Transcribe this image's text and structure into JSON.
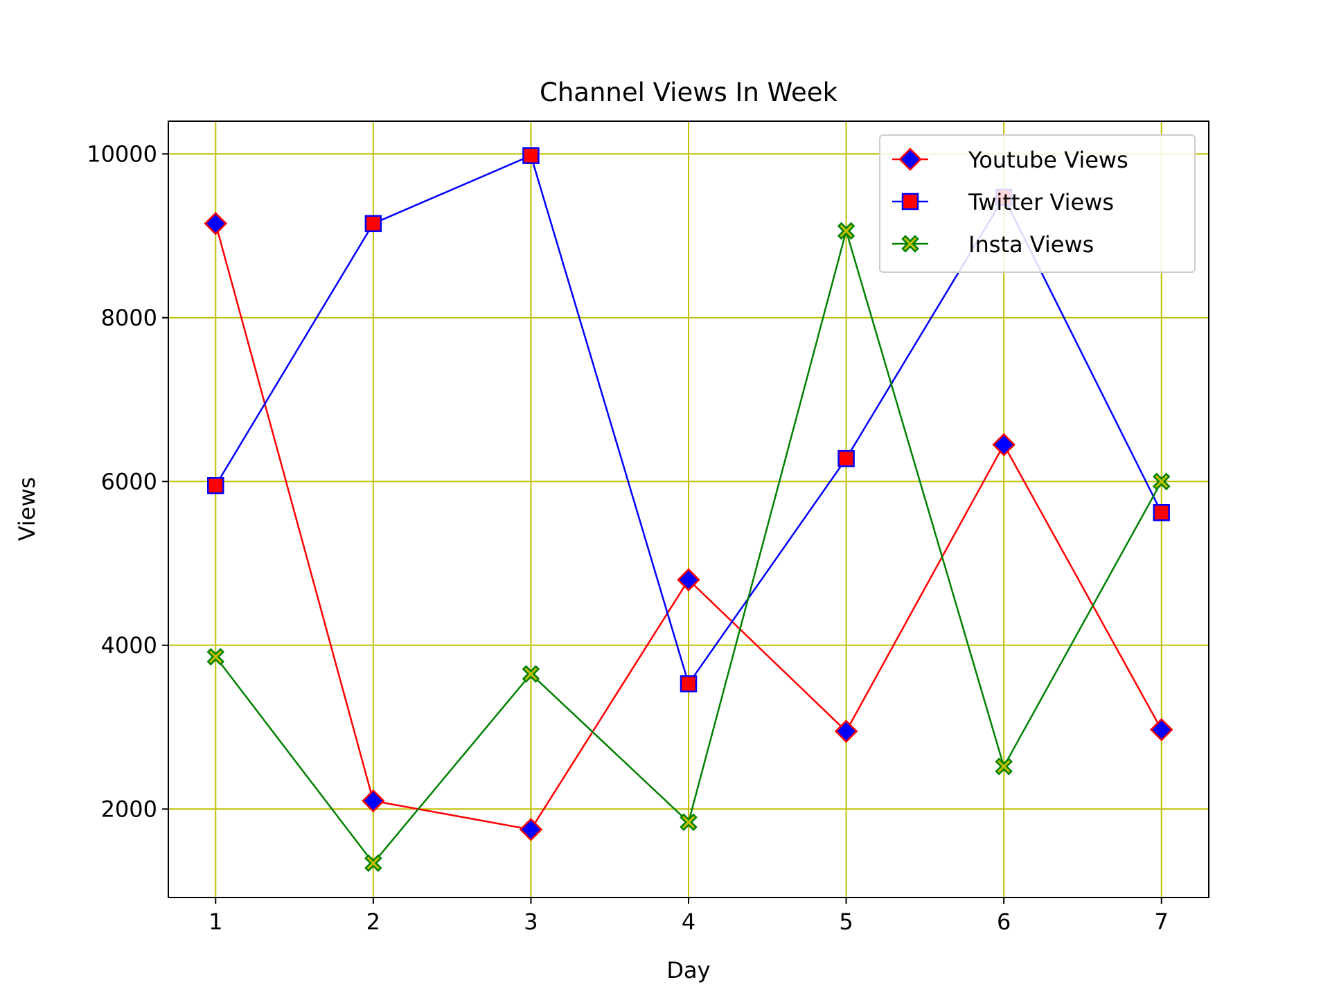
{
  "chart_data": {
    "type": "line",
    "title": "Channel Views In Week",
    "xlabel": "Day",
    "ylabel": "Views",
    "x": [
      1,
      2,
      3,
      4,
      5,
      6,
      7
    ],
    "xticks": [
      "1",
      "2",
      "3",
      "4",
      "5",
      "6",
      "7"
    ],
    "yticks": [
      "2000",
      "4000",
      "6000",
      "8000",
      "10000"
    ],
    "xlim": [
      0.7,
      7.3
    ],
    "ylim": [
      920,
      10400
    ],
    "grid": true,
    "grid_color": "#bfbf00",
    "legend_position": "top-right",
    "series": [
      {
        "name": "Youtube Views",
        "values": [
          9150,
          2100,
          1750,
          4800,
          2950,
          6450,
          2970
        ],
        "line_color": "#ff0000",
        "marker": "diamond",
        "marker_face": "#0000ff",
        "marker_edge": "#ff0000"
      },
      {
        "name": "Twitter Views",
        "values": [
          5950,
          9150,
          9980,
          3530,
          6280,
          9470,
          5620
        ],
        "line_color": "#0000ff",
        "marker": "square",
        "marker_face": "#ff0000",
        "marker_edge": "#0000ff"
      },
      {
        "name": "Insta Views",
        "values": [
          3860,
          1340,
          3650,
          1840,
          9060,
          2520,
          6000
        ],
        "line_color": "#008000",
        "marker": "x-filled",
        "marker_face": "#bfbf00",
        "marker_edge": "#008000"
      }
    ]
  }
}
